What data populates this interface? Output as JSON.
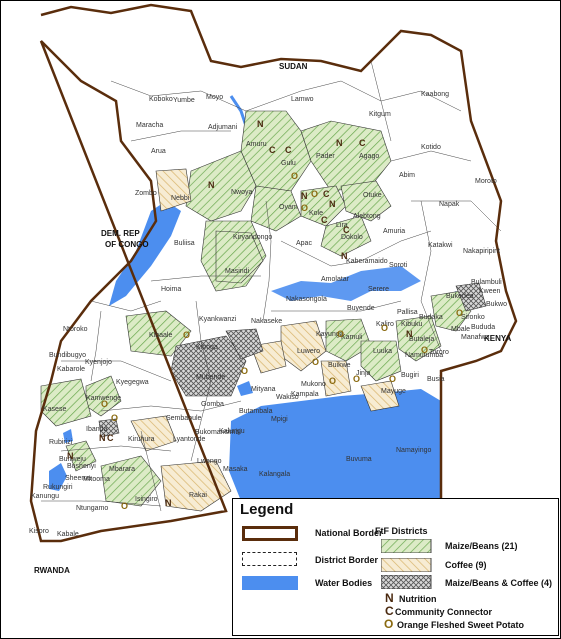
{
  "map": {
    "neighbors": {
      "sudan": "SUDAN",
      "drc": [
        "DEM. REP",
        "OF CONGO"
      ],
      "kenya": "KENYA",
      "rwanda": "RWANDA"
    },
    "places": [
      "Koboko",
      "Yumbe",
      "Moyo",
      "Maracha",
      "Adjumani",
      "Arua",
      "Amuru",
      "Lamwo",
      "Kitgum",
      "Kaabong",
      "Gulu",
      "Pader",
      "Agago",
      "Kotido",
      "Zombo",
      "Nebbi",
      "Nwoya",
      "Abim",
      "Moroto",
      "Oyam",
      "Otuke",
      "Kole",
      "Napak",
      "Alebtong",
      "Lira",
      "Kiryandongo",
      "Dokolo",
      "Amuria",
      "Nakapiripirit",
      "Buliisa",
      "Masindi",
      "Apac",
      "Katakwi",
      "Hoima",
      "Amolatar",
      "Serere",
      "Soroti",
      "Nakasongola",
      "Buyende",
      "Pallisa",
      "Kibaale",
      "Kyankwanzi",
      "Nakaseke",
      "Kayunga",
      "Kamuli",
      "Tororo",
      "Buikwe",
      "Jinja",
      "Bugiri",
      "Busia",
      "Mayuge",
      "Kyenjojo",
      "Kyegegwa",
      "Mubende",
      "Mityana",
      "Mpigi",
      "Kalungu",
      "Masaka",
      "Kalangala",
      "Buvuma",
      "Namayingo",
      "Kasese",
      "Kamwenge",
      "Ibanda",
      "Sembabule",
      "Lyantonde",
      "Kiruhura",
      "Bushenyi",
      "Mbarara",
      "Isingiro",
      "Rakai",
      "Ntungamo",
      "Kabale",
      "Kisoro",
      "Rukungiri",
      "Kanungu",
      "Lwengo",
      "Bukomansimbi",
      "Gomba",
      "Butambala",
      "Wakiso",
      "Kampala",
      "Mukono",
      "Luwero",
      "Kaberamaido",
      "Bukedea",
      "Kween",
      "Bulambuli",
      "Sironko",
      "Manafwa",
      "Mbale",
      "Bududa",
      "Budaka",
      "Butaleja",
      "Kibuku",
      "Kaliro",
      "Namutumba",
      "Luuka",
      "Bundibugyo",
      "Ntoroko",
      "Kabarole",
      "Kiboga",
      "Rubirizi",
      "Sheema",
      "Mitooma",
      "Buhweju",
      "Kasese",
      "Butaleja",
      "Bukwo"
    ]
  },
  "legend": {
    "title": "Legend",
    "national_border": "National Border",
    "district_border": "District Border",
    "water_bodies": "Water Bodies",
    "ftf_header": "FtF Districts",
    "maize_beans": "Maize/Beans (21)",
    "coffee": "Coffee (9)",
    "maize_beans_coffee": "Maize/Beans & Coffee (4)",
    "nutrition_letter": "N",
    "nutrition": "Nutrition",
    "connector_letter": "C",
    "connector": "Community Connector",
    "ofsp_letter": "O",
    "ofsp": "Orange Fleshed Sweet Potato"
  },
  "colors": {
    "maize_fill": "#dcebc6",
    "maize_hatch": "#6aa84f",
    "coffee_fill": "#f7ecd3",
    "coffee_hatch": "#d8b46a",
    "mixed_hatch": "#555555",
    "water": "#4c8eef",
    "national_border": "#5a2d0c"
  }
}
